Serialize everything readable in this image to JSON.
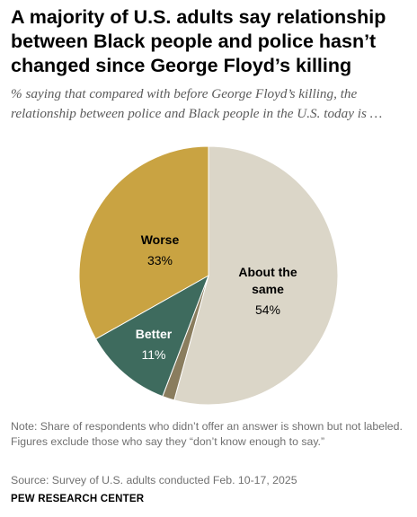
{
  "chart_data": {
    "type": "pie",
    "title": "A majority of U.S. adults say relationship between Black people and police hasn’t changed since George Floyd’s killing",
    "subtitle": "% saying that compared with before George Floyd’s killing, the relationship between police and Black people in the U.S. today is …",
    "slices": [
      {
        "name": "About the same",
        "value": 54,
        "label": "54%",
        "color": "#dbd6c8"
      },
      {
        "name": "No answer",
        "value": 1.5,
        "label": "",
        "color": "#8a7d5e"
      },
      {
        "name": "Better",
        "value": 11,
        "label": "11%",
        "color": "#3e6b5e"
      },
      {
        "name": "Worse",
        "value": 33,
        "label": "33%",
        "color": "#c9a342"
      }
    ],
    "start_angle_deg": 0,
    "direction": "clockwise"
  },
  "note": "Note: Share of respondents who didn’t offer an answer is shown but not labeled. Figures exclude those who say they “don’t know enough to say.”",
  "source": "Source: Survey of U.S. adults conducted Feb. 10-17, 2025",
  "brand": "PEW RESEARCH CENTER"
}
